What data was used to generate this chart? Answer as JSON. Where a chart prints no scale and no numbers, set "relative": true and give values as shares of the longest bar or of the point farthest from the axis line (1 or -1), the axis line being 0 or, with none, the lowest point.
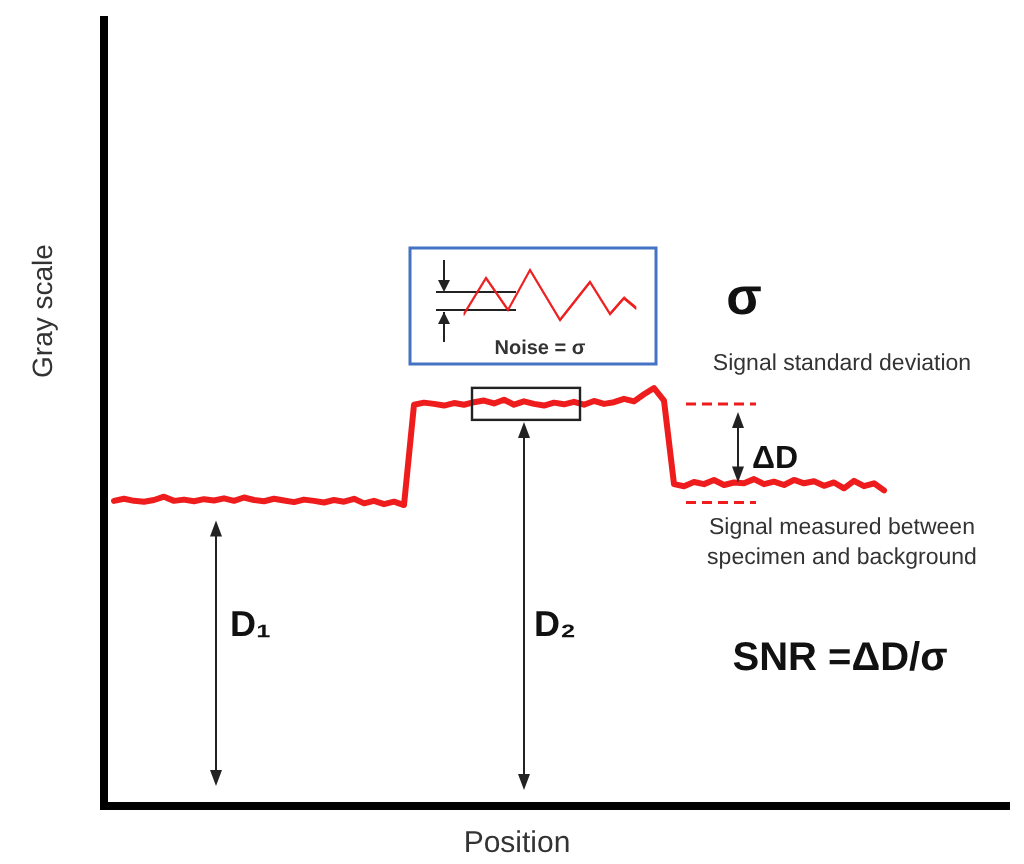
{
  "chart_data": {
    "type": "line",
    "relative": true,
    "xlabel": "Position",
    "ylabel": "Gray scale",
    "marker": "none",
    "line_style": "solid",
    "categories": [
      null,
      null,
      null,
      null,
      null,
      null,
      null,
      null,
      null,
      null,
      null,
      null,
      null,
      null,
      null,
      null,
      null,
      null,
      null,
      null,
      null,
      null,
      null,
      null,
      null,
      null,
      null,
      null,
      null,
      null,
      null,
      null,
      null,
      null,
      null,
      null,
      null,
      null,
      null,
      null,
      null,
      null,
      null,
      null,
      null,
      null,
      null,
      null,
      null,
      null,
      null,
      null,
      null,
      null,
      null,
      null,
      null,
      null,
      null,
      null,
      null,
      null,
      null,
      null,
      null,
      null,
      null,
      null,
      null,
      null,
      null,
      null,
      null,
      null,
      null,
      null,
      null,
      null,
      null,
      null,
      null,
      null,
      null,
      null,
      null,
      null,
      null,
      null,
      null,
      null
    ],
    "series": [
      {
        "color": "#ee1c1c",
        "values": [
          0.73,
          0.735,
          0.73,
          0.728,
          0.732,
          0.74,
          0.73,
          0.733,
          0.729,
          0.734,
          0.731,
          0.736,
          0.73,
          0.738,
          0.732,
          0.729,
          0.735,
          0.731,
          0.727,
          0.733,
          0.73,
          0.726,
          0.732,
          0.728,
          0.735,
          0.724,
          0.73,
          0.722,
          0.728,
          0.72,
          0.96,
          0.965,
          0.962,
          0.958,
          0.964,
          0.96,
          0.966,
          0.97,
          0.963,
          0.972,
          0.96,
          0.968,
          0.962,
          0.958,
          0.965,
          0.961,
          0.967,
          0.96,
          0.969,
          0.962,
          0.966,
          0.974,
          0.968,
          0.985,
          1,
          0.97,
          0.77,
          0.765,
          0.775,
          0.77,
          0.78,
          0.768,
          0.774,
          0.772,
          0.782,
          0.77,
          0.776,
          0.768,
          0.78,
          0.772,
          0.777,
          0.766,
          0.774,
          0.76,
          0.778,
          0.765,
          0.772,
          0.755,
          null,
          null,
          null,
          null,
          null,
          null,
          null,
          null,
          null,
          null,
          null,
          null
        ]
      }
    ],
    "annotations": [
      "σ",
      "Signal standard deviation",
      "ΔD",
      "Signal measured between specimen and background",
      "D₁",
      "D₂",
      "SNR =ΔD/σ",
      "Noise = σ"
    ]
  }
}
